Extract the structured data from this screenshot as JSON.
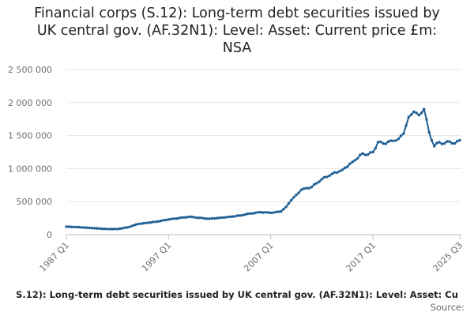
{
  "chart_data": {
    "type": "line",
    "title": "Financial corps (S.12): Long-term debt securities issued by UK central gov. (AF.32N1): Level: Asset: Current price £m: NSA",
    "title_lines": [
      "Financial corps (S.12): Long-term debt securities issued by",
      "UK central gov. (AF.32N1): Level: Asset: Current price £m:",
      "NSA"
    ],
    "xlabel": "",
    "ylabel": "",
    "ylim": [
      0,
      2500000
    ],
    "y_ticks": [
      "0",
      "500 000",
      "1 000 000",
      "1 500 000",
      "2 000 000",
      "2 500 000"
    ],
    "x_ticks": [
      "1987 Q1",
      "1997 Q1",
      "2007 Q1",
      "2017 Q1",
      "2025 Q3"
    ],
    "grid": "horizontal",
    "series_color": "#206095",
    "series": [
      {
        "name": "S.12): Long-term debt securities issued by UK central gov. (AF.32N1): Level: Asset: Cu",
        "x": [
          "1987 Q1",
          "1988 Q1",
          "1989 Q1",
          "1990 Q1",
          "1991 Q1",
          "1992 Q1",
          "1993 Q1",
          "1994 Q1",
          "1995 Q1",
          "1996 Q1",
          "1997 Q1",
          "1998 Q1",
          "1999 Q1",
          "2000 Q1",
          "2001 Q1",
          "2002 Q1",
          "2003 Q1",
          "2004 Q1",
          "2005 Q1",
          "2006 Q1",
          "2007 Q1",
          "2008 Q1",
          "2008 Q3",
          "2009 Q1",
          "2009 Q3",
          "2010 Q1",
          "2011 Q1",
          "2012 Q1",
          "2013 Q1",
          "2014 Q1",
          "2015 Q1",
          "2016 Q1",
          "2016 Q3",
          "2017 Q1",
          "2017 Q3",
          "2018 Q1",
          "2019 Q1",
          "2019 Q3",
          "2020 Q1",
          "2020 Q3",
          "2021 Q1",
          "2021 Q3",
          "2022 Q1",
          "2022 Q3",
          "2023 Q1",
          "2023 Q3",
          "2024 Q1",
          "2024 Q3",
          "2025 Q1",
          "2025 Q3"
        ],
        "values": [
          120000,
          115000,
          105000,
          95000,
          85000,
          85000,
          110000,
          160000,
          180000,
          200000,
          230000,
          250000,
          270000,
          255000,
          240000,
          255000,
          270000,
          290000,
          320000,
          340000,
          330000,
          350000,
          420000,
          520000,
          600000,
          680000,
          720000,
          840000,
          920000,
          980000,
          1100000,
          1230000,
          1210000,
          1250000,
          1400000,
          1380000,
          1420000,
          1450000,
          1530000,
          1780000,
          1860000,
          1810000,
          1900000,
          1550000,
          1340000,
          1400000,
          1380000,
          1410000,
          1380000,
          1430000
        ]
      }
    ]
  },
  "source_label": "Source:"
}
